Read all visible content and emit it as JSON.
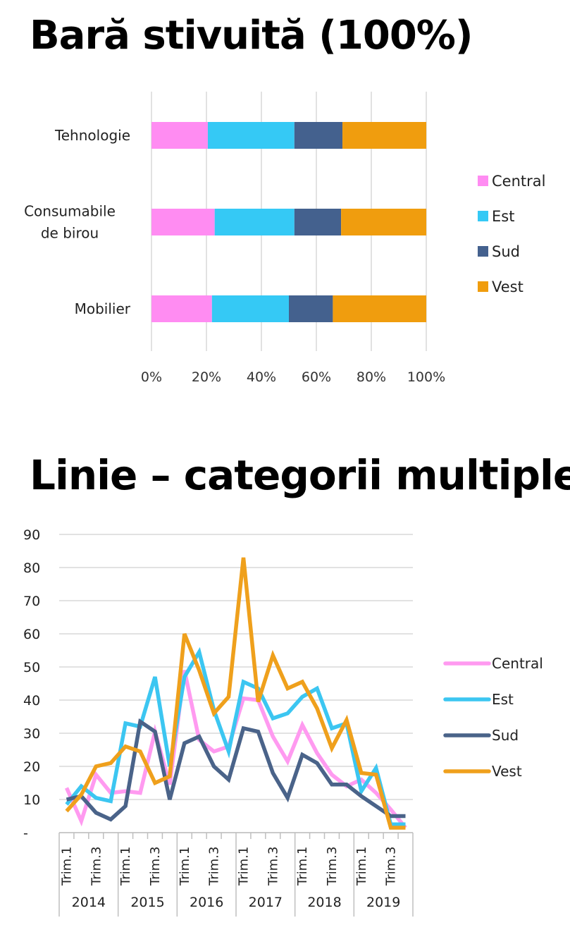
{
  "chart_data": [
    {
      "type": "bar",
      "stacked": "percent",
      "orientation": "horizontal",
      "title": "Bară stivuită (100%)",
      "categories": [
        "Tehnologie",
        "Consumabile de birou",
        "Mobilier"
      ],
      "category_lines": [
        [
          "Tehnologie"
        ],
        [
          "Consumabile",
          "de birou"
        ],
        [
          "Mobilier"
        ]
      ],
      "series": [
        {
          "name": "Central",
          "color": "#FF8CF2",
          "values": [
            20.5,
            23,
            22
          ]
        },
        {
          "name": "Est",
          "color": "#35C9F5",
          "values": [
            31.5,
            29,
            28
          ]
        },
        {
          "name": "Sud",
          "color": "#44618E",
          "values": [
            17.5,
            17,
            16
          ]
        },
        {
          "name": "Vest",
          "color": "#F09D0E",
          "values": [
            30.5,
            31,
            34
          ]
        }
      ],
      "xlim": [
        0,
        100
      ],
      "xticks": [
        "0%",
        "20%",
        "40%",
        "60%",
        "80%",
        "100%"
      ],
      "grid": true,
      "legend": "right"
    },
    {
      "type": "line",
      "title": "Linie – categorii multiple",
      "years": [
        "2014",
        "2015",
        "2016",
        "2017",
        "2018",
        "2019"
      ],
      "quarter_labels": [
        "Trim.1",
        "Trim.3"
      ],
      "x_count": 24,
      "ylim": [
        0,
        90
      ],
      "yticks": [
        "-",
        "10",
        "20",
        "30",
        "40",
        "50",
        "60",
        "70",
        "80",
        "90"
      ],
      "grid": true,
      "legend": "right",
      "series": [
        {
          "name": "Central",
          "color": "#FF9AF0",
          "values": [
            13.5,
            3.5,
            17.5,
            12,
            12.5,
            12,
            30.5,
            14.5,
            49,
            28,
            24.5,
            26,
            40.5,
            40,
            29,
            21.5,
            32.5,
            24,
            17.5,
            14,
            16,
            12,
            7,
            1.5
          ]
        },
        {
          "name": "Est",
          "color": "#3CC6F1",
          "values": [
            8.5,
            14,
            10.5,
            9.5,
            33,
            32,
            47,
            20,
            47,
            54.5,
            37,
            24.5,
            45.5,
            43.5,
            34.5,
            36,
            41,
            43.5,
            31.5,
            33,
            12.5,
            19.5,
            2.5,
            2.5
          ]
        },
        {
          "name": "Sud",
          "color": "#4A6389",
          "values": [
            10,
            11,
            6,
            4,
            8,
            33.5,
            30.5,
            10,
            27,
            29,
            20,
            16,
            31.5,
            30.5,
            18,
            10.5,
            23.5,
            21,
            14.5,
            14.5,
            11,
            8,
            5,
            5
          ]
        },
        {
          "name": "Vest",
          "color": "#EFA01C",
          "values": [
            6.5,
            11.5,
            20,
            21,
            26,
            24.5,
            15,
            17,
            60,
            49,
            36,
            41,
            83,
            39.5,
            53.5,
            43.5,
            45.5,
            37.5,
            25.5,
            34,
            18,
            17.5,
            1.5,
            1.5
          ]
        }
      ]
    }
  ]
}
